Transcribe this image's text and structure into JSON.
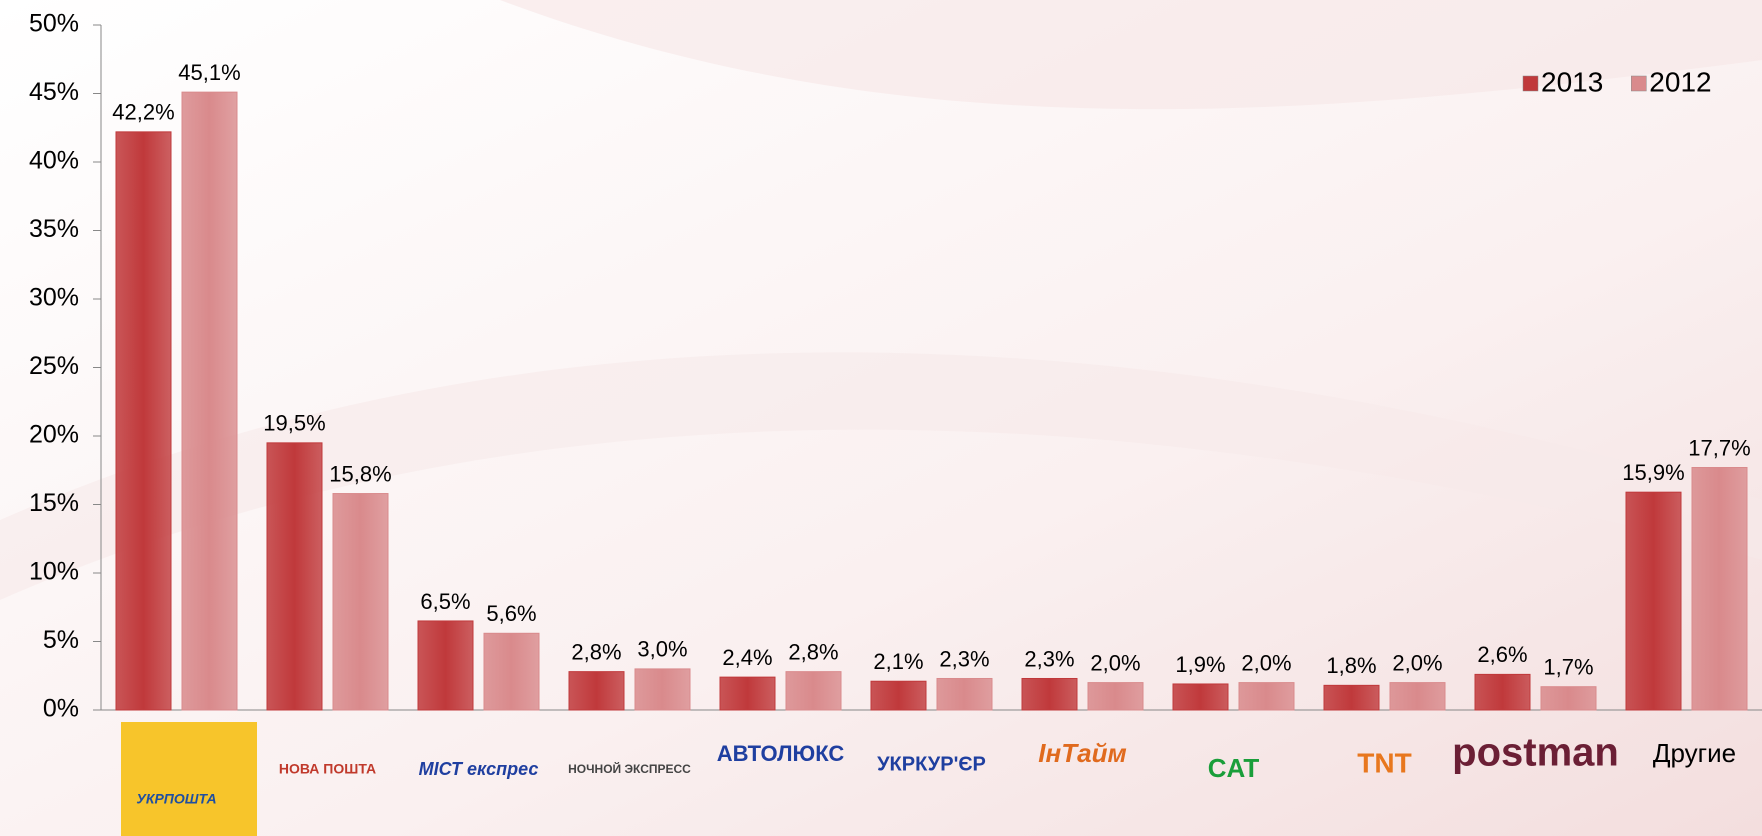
{
  "chart_data": {
    "type": "bar",
    "categories": [
      "УКРПОШТА",
      "НОВА ПОШТА",
      "МІСТ експрес",
      "НОЧНОЙ ЭКСПРЕСС",
      "АВТОЛЮКС",
      "УКРКУР'ЄР",
      "ІнТайм",
      "CAT",
      "TNT",
      "postman",
      "Другие"
    ],
    "series": [
      {
        "name": "2013",
        "color": "#c0393b",
        "values": [
          42.2,
          19.5,
          6.5,
          2.8,
          2.4,
          2.1,
          2.3,
          1.9,
          1.8,
          2.6,
          15.9
        ],
        "value_labels": [
          "42,2%",
          "19,5%",
          "6,5%",
          "2,8%",
          "2,4%",
          "2,1%",
          "2,3%",
          "1,9%",
          "1,8%",
          "2,6%",
          "15,9%"
        ]
      },
      {
        "name": "2012",
        "color": "#d98a8c",
        "values": [
          45.1,
          15.8,
          5.6,
          3.0,
          2.8,
          2.3,
          2.0,
          2.0,
          2.0,
          1.7,
          17.7
        ],
        "value_labels": [
          "45,1%",
          "15,8%",
          "5,6%",
          "3,0%",
          "2,8%",
          "2,3%",
          "2,0%",
          "2,0%",
          "2,0%",
          "1,7%",
          "17,7%"
        ]
      }
    ],
    "ylim": [
      0,
      50
    ],
    "yticks": [
      {
        "value": 0,
        "label": "0%"
      },
      {
        "value": 5,
        "label": "5%"
      },
      {
        "value": 10,
        "label": "10%"
      },
      {
        "value": 15,
        "label": "15%"
      },
      {
        "value": 20,
        "label": "20%"
      },
      {
        "value": 25,
        "label": "25%"
      },
      {
        "value": 30,
        "label": "30%"
      },
      {
        "value": 35,
        "label": "35%"
      },
      {
        "value": 40,
        "label": "40%"
      },
      {
        "value": 45,
        "label": "45%"
      },
      {
        "value": 50,
        "label": "50%"
      }
    ],
    "legend": "top-right"
  }
}
